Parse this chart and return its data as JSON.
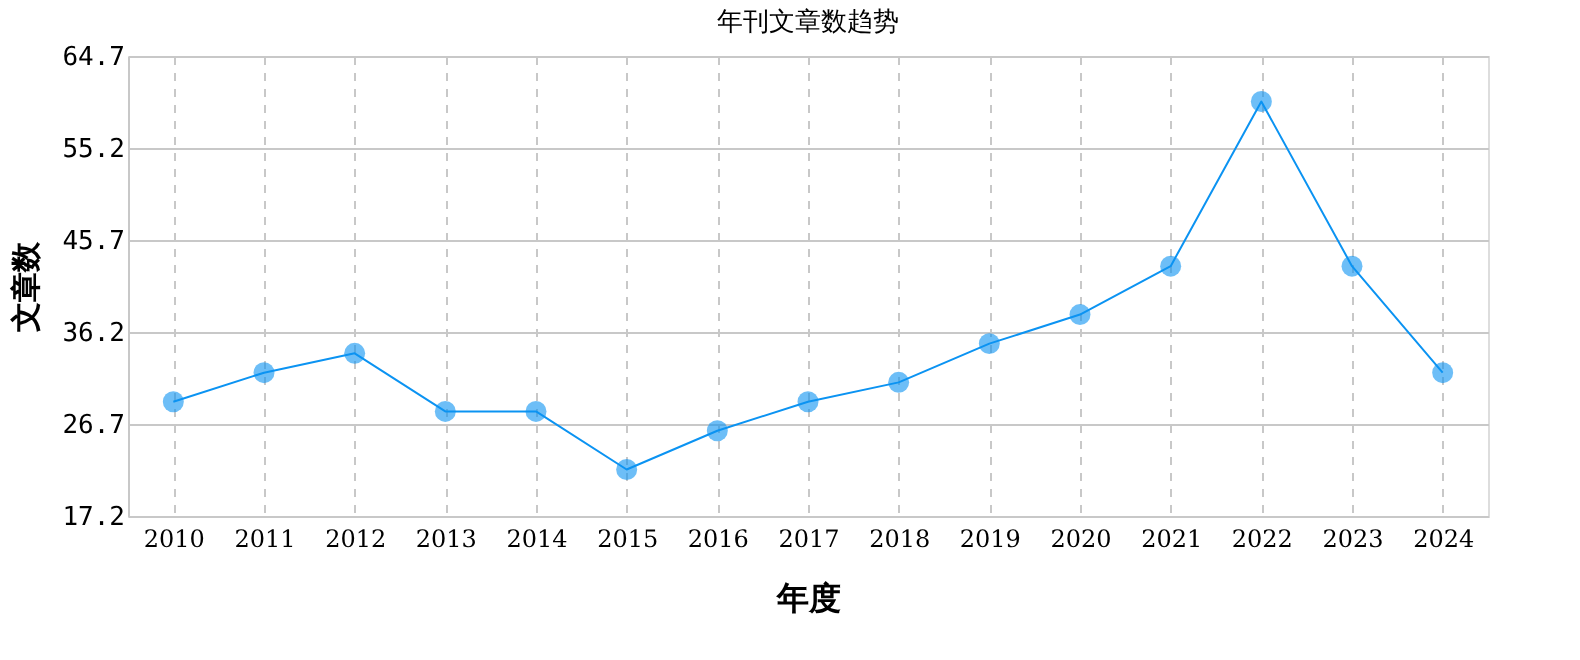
{
  "chart_data": {
    "type": "line",
    "title": "年刊文章数趋势",
    "xlabel": "年度",
    "ylabel": "文章数",
    "categories": [
      "2010",
      "2011",
      "2012",
      "2013",
      "2014",
      "2015",
      "2016",
      "2017",
      "2018",
      "2019",
      "2020",
      "2021",
      "2022",
      "2023",
      "2024"
    ],
    "series": [
      {
        "color": "#0b93f2",
        "values": [
          29,
          32,
          34,
          28,
          28,
          22,
          26,
          29,
          31,
          35,
          38,
          43,
          60,
          43,
          32
        ]
      }
    ],
    "ylim": [
      17.2,
      64.7
    ],
    "yticks": [
      17.2,
      26.7,
      36.2,
      45.7,
      55.2,
      64.7
    ],
    "grid": true,
    "marker": "circle",
    "line_style": "solid"
  }
}
